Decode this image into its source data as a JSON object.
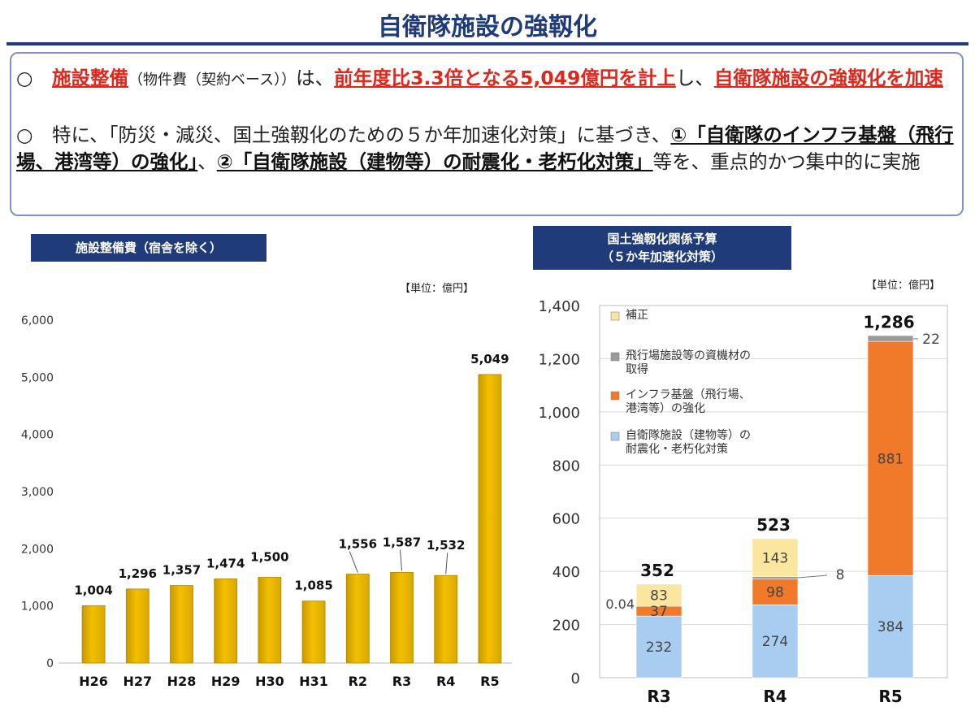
{
  "page": {
    "title": "自衛隊施設の強靱化",
    "bullet1": {
      "marker": "○",
      "head": "施設整備",
      "paren": "（物件費（契約ベース））",
      "mid": "は、",
      "hl1": "前年度比3.3倍となる5,049億円を計上",
      "mid2": "し、",
      "hl2": "自衛隊施設の強靱化を加速"
    },
    "bullet2": {
      "marker": "○",
      "pre": "特に、「防災・減災、国土強靱化のための５か年加速化対策」に基づき、",
      "hl1": "①「自衛隊のインフラ基盤（飛行場、港湾等）の強化」",
      "mid": "、",
      "hl2": "②「自衛隊施設（建物等）の耐震化・老朽化対策」",
      "post": "等を、重点的かつ集中的に実施"
    }
  },
  "left_chart_label": "施設整備費（宿舎を除く）",
  "left_unit": "【単位：億円】",
  "right_chart_label_line1": "国土強靱化関係予算",
  "right_chart_label_line2": "（５か年加速化対策）",
  "right_unit": "【単位：億円】",
  "colors": {
    "navy": "#1f3b7a",
    "red": "#e0271c",
    "gold": "#f3c000",
    "blue": "#a8cdf0",
    "orange": "#f07a2a",
    "gray": "#9a9a9a",
    "pale": "#fbe6a0"
  },
  "chart_data": [
    {
      "type": "bar",
      "title": "施設整備費（宿舎を除く）",
      "categories": [
        "H26",
        "H27",
        "H28",
        "H29",
        "H30",
        "H31",
        "R2",
        "R3",
        "R4",
        "R5"
      ],
      "values": [
        1004,
        1296,
        1357,
        1474,
        1500,
        1085,
        1556,
        1587,
        1532,
        5049
      ],
      "value_labels": [
        "1,004",
        "1,296",
        "1,357",
        "1,474",
        "1,500",
        "1,085",
        "1,556",
        "1,587",
        "1,532",
        "5,049"
      ],
      "ylim": [
        0,
        6000
      ],
      "yticks": [
        0,
        1000,
        2000,
        3000,
        4000,
        5000,
        6000
      ],
      "ytick_labels": [
        "0",
        "1,000",
        "2,000",
        "3,000",
        "4,000",
        "5,000",
        "6,000"
      ],
      "grid": false,
      "unit": "【単位：億円】"
    },
    {
      "type": "stacked-bar",
      "title": "国土強靱化関係予算（５か年加速化対策）",
      "categories": [
        "R3",
        "R4",
        "R5"
      ],
      "series": [
        {
          "name": "自衛隊施設（建物等）の耐震化・老朽化対策",
          "values": [
            232,
            274,
            384
          ],
          "labels": [
            "232",
            "274",
            "384"
          ],
          "color": "#a8cdf0"
        },
        {
          "name": "インフラ基盤（飛行場、港湾等）の強化",
          "values": [
            37,
            98,
            881
          ],
          "labels": [
            "37",
            "98",
            "881"
          ],
          "color": "#f07a2a"
        },
        {
          "name": "飛行場施設等の資機材の取得",
          "values": [
            0.04,
            8,
            22
          ],
          "labels": [
            "0.04",
            "8",
            "22"
          ],
          "color": "#9a9a9a"
        },
        {
          "name": "補正",
          "values": [
            83,
            143,
            0
          ],
          "labels": [
            "83",
            "143",
            ""
          ],
          "color": "#fbe6a0"
        }
      ],
      "totals": [
        "352",
        "523",
        "1,286"
      ],
      "legend_order": [
        "補正",
        "飛行場施設等の資機材の取得",
        "インフラ基盤（飛行場、港湾等）の強化",
        "自衛隊施設（建物等）の耐震化・老朽化対策"
      ],
      "legend_lines": [
        [
          "補正"
        ],
        [
          "飛行場施設等の資機材の",
          "取得"
        ],
        [
          "インフラ基盤（飛行場、",
          "港湾等）の強化"
        ],
        [
          "自衛隊施設（建物等）の",
          "耐震化・老朽化対策"
        ]
      ],
      "legend_placement": "top-left",
      "ylim": [
        0,
        1400
      ],
      "yticks": [
        0,
        200,
        400,
        600,
        800,
        1000,
        1200,
        1400
      ],
      "ytick_labels": [
        "0",
        "200",
        "400",
        "600",
        "800",
        "1,000",
        "1,200",
        "1,400"
      ],
      "grid": true,
      "unit": "【単位：億円】"
    }
  ]
}
